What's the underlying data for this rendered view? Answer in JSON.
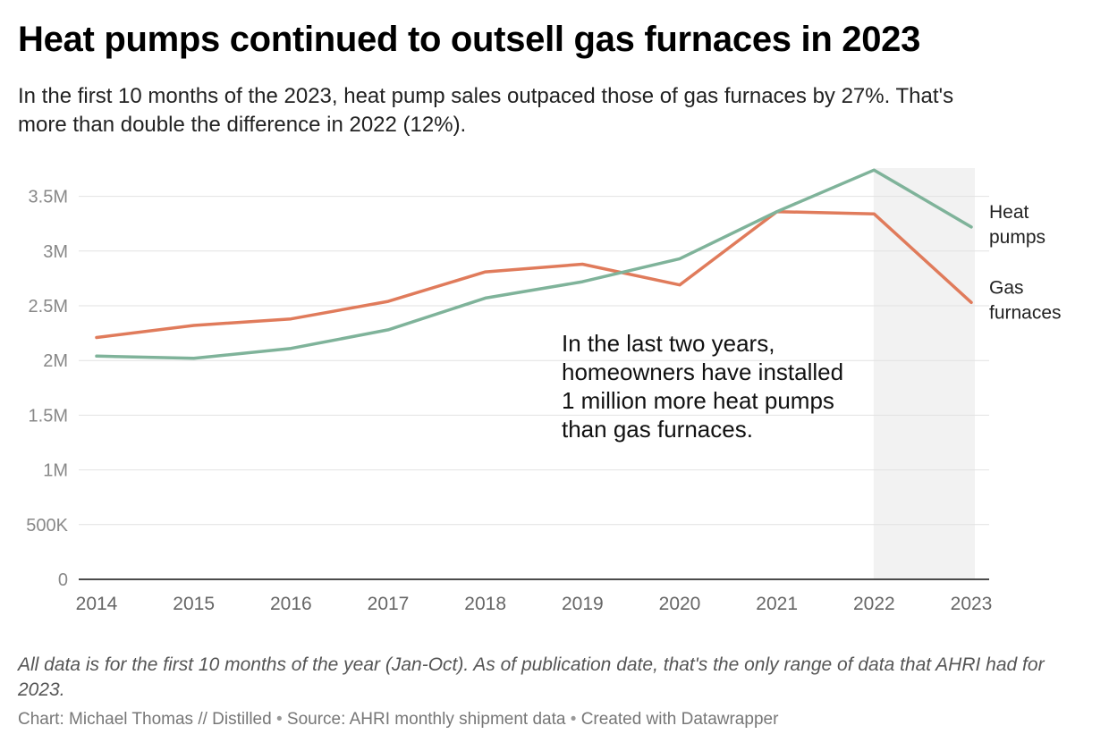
{
  "header": {
    "title": "Heat pumps continued to outsell gas furnaces in 2023",
    "subtitle": "In the first 10 months of the 2023, heat pump sales outpaced those of gas furnaces by 27%. That's more than double the difference in 2022 (12%)."
  },
  "footer": {
    "notes": "All data is for the first 10 months of the year (Jan-Oct). As of publication date, that's the only range of data that AHRI had for 2023.",
    "credit_chart": "Chart: Michael Thomas // Distilled",
    "credit_source": "Source: AHRI monthly shipment data",
    "credit_tool": "Created with Datawrapper",
    "credit_separator": "•"
  },
  "chart_data": {
    "type": "line",
    "title": "Heat pumps continued to outsell gas furnaces in 2023",
    "x": [
      2014,
      2015,
      2016,
      2017,
      2018,
      2019,
      2020,
      2021,
      2022,
      2023
    ],
    "x_tick_labels": [
      "2014",
      "2015",
      "2016",
      "2017",
      "2018",
      "2019",
      "2020",
      "2021",
      "2022",
      "2023"
    ],
    "ylim": [
      0,
      3750000
    ],
    "y_ticks": [
      0,
      500000,
      1000000,
      1500000,
      2000000,
      2500000,
      3000000,
      3500000
    ],
    "y_tick_labels": [
      "0",
      "500K",
      "1M",
      "1.5M",
      "2M",
      "2.5M",
      "3M",
      "3.5M"
    ],
    "grid": true,
    "legend": "direct labels at line ends (right)",
    "highlight_range": [
      2022,
      2023
    ],
    "highlight_color": "#f2f2f2",
    "series": [
      {
        "name": "Heat pumps",
        "label_lines": [
          "Heat",
          "pumps"
        ],
        "color": "#7fb39a",
        "values": [
          2040000,
          2020000,
          2110000,
          2280000,
          2570000,
          2720000,
          2930000,
          3360000,
          3740000,
          3220000
        ]
      },
      {
        "name": "Gas furnaces",
        "label_lines": [
          "Gas",
          "furnaces"
        ],
        "color": "#e07b5b",
        "values": [
          2210000,
          2320000,
          2380000,
          2540000,
          2810000,
          2880000,
          2690000,
          3360000,
          3340000,
          2530000
        ]
      }
    ],
    "annotation": {
      "lines": [
        "In the last two years,",
        "homeowners have installed",
        "1 million more heat pumps",
        "than gas furnaces."
      ]
    }
  }
}
